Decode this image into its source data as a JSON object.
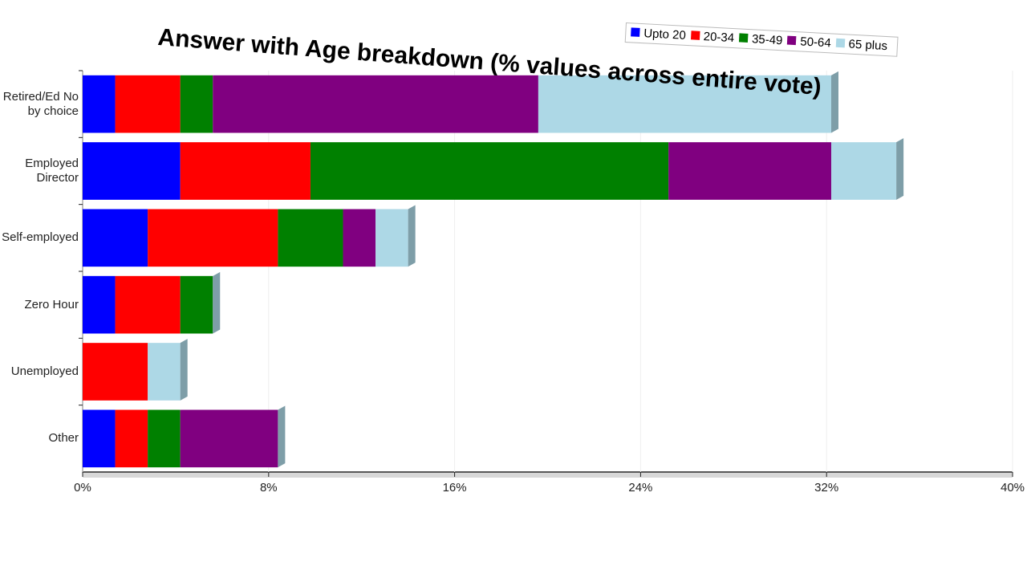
{
  "chart_data": {
    "type": "stacked-bar-horizontal",
    "title": "Answer with Age breakdown (% values across entire vote)",
    "categories": [
      "Retired/Ed No by choice",
      "Employed Director",
      "Self-employed",
      "Zero Hour",
      "Unemployed",
      "Other"
    ],
    "series": [
      {
        "name": "Upto 20",
        "color": "#0000ff",
        "values": [
          1.4,
          4.2,
          2.8,
          1.4,
          0,
          1.4
        ]
      },
      {
        "name": "20-34",
        "color": "#ff0000",
        "values": [
          2.8,
          5.6,
          5.6,
          2.8,
          2.8,
          1.4
        ]
      },
      {
        "name": "35-49",
        "color": "#008000",
        "values": [
          1.4,
          15.4,
          2.8,
          1.4,
          0,
          1.4
        ]
      },
      {
        "name": "50-64",
        "color": "#800080",
        "values": [
          14,
          7,
          1.4,
          0,
          0,
          4.2
        ]
      },
      {
        "name": "65 plus",
        "color": "#add8e6",
        "values": [
          12.6,
          2.8,
          1.4,
          0,
          1.4,
          0
        ]
      }
    ],
    "xlim": [
      0,
      40
    ],
    "xticks": [
      {
        "value": 0,
        "label": "0%"
      },
      {
        "value": 8,
        "label": "8%"
      },
      {
        "value": 16,
        "label": "16%"
      },
      {
        "value": 24,
        "label": "24%"
      },
      {
        "value": 32,
        "label": "32%"
      },
      {
        "value": 40,
        "label": "40%"
      }
    ],
    "legend": "top-right"
  }
}
